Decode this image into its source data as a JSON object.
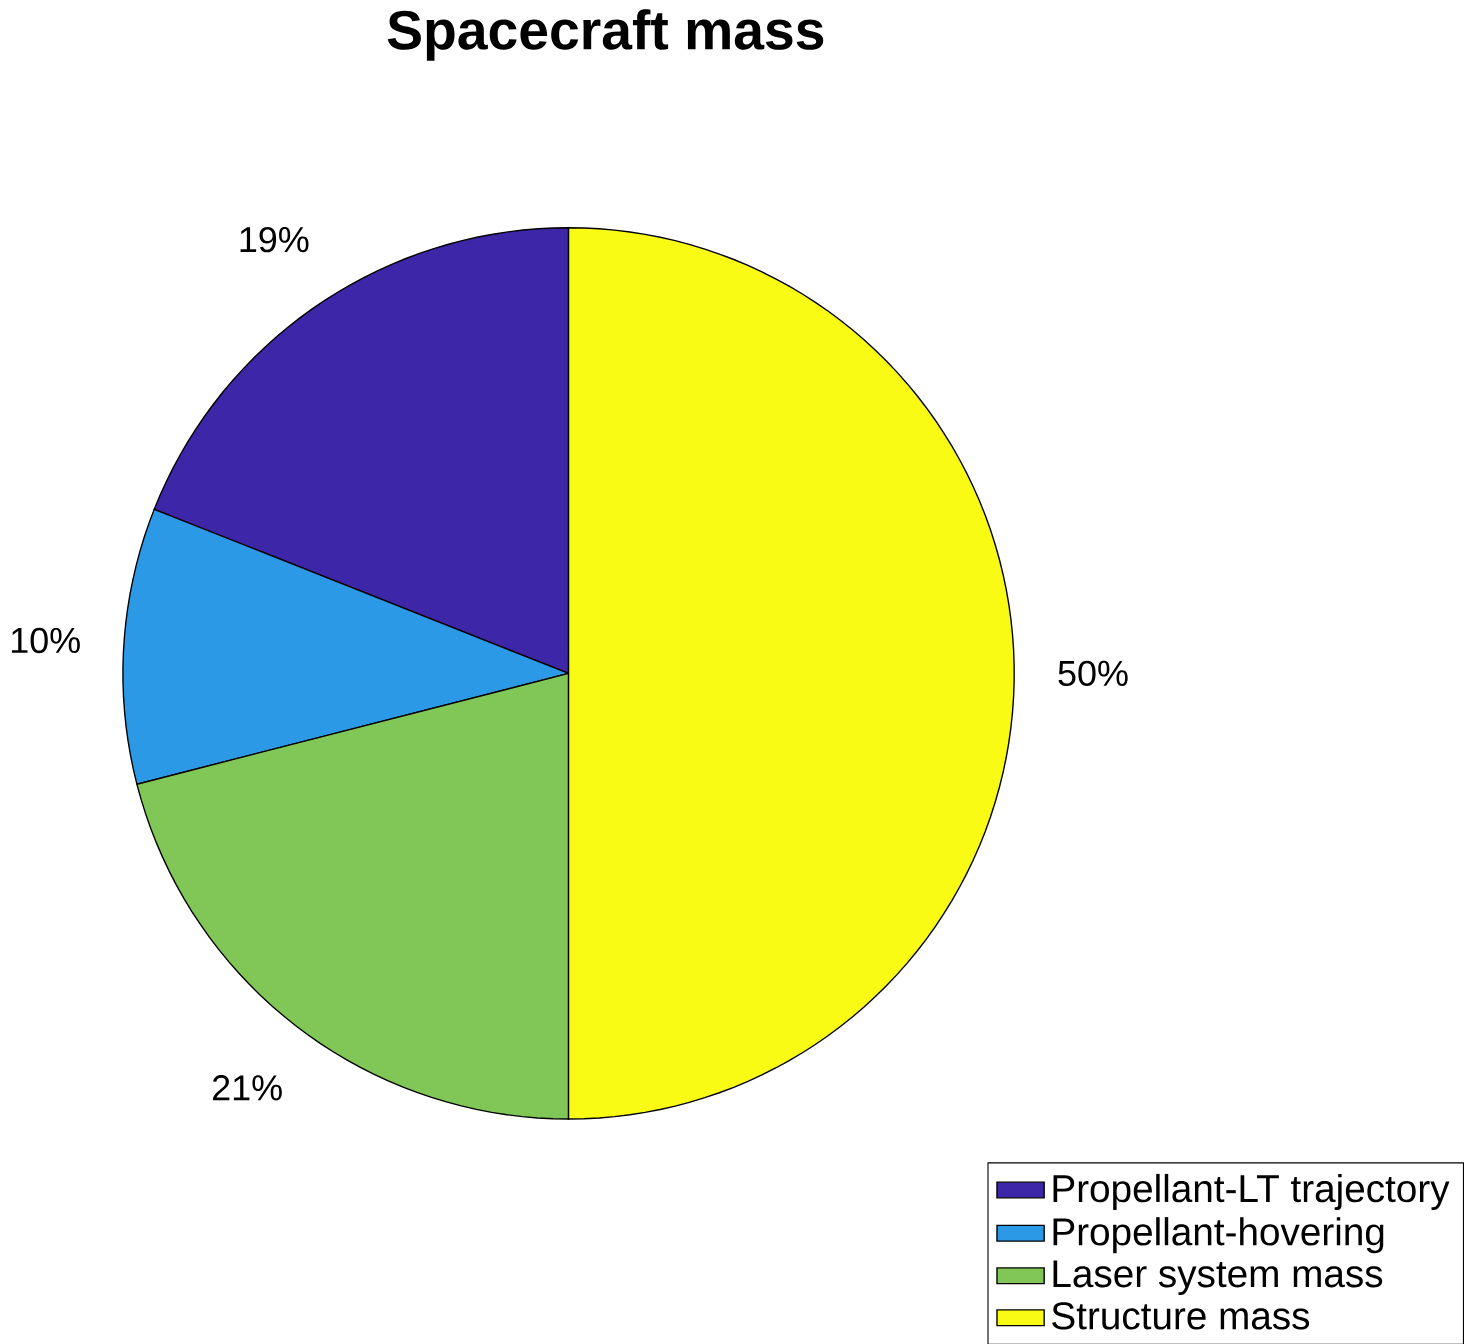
{
  "chart_data": {
    "type": "pie",
    "title": "Spacecraft mass",
    "categories": [
      "Propellant-LT trajectory",
      "Propellant-hovering",
      "Laser system mass",
      "Structure mass"
    ],
    "values": [
      19,
      10,
      21,
      50
    ],
    "colors": [
      "#3e26a8",
      "#2c99e6",
      "#80c757",
      "#f9fb15"
    ],
    "value_labels": [
      "19%",
      "10%",
      "21%",
      "50%"
    ],
    "legend": "bottom right"
  }
}
